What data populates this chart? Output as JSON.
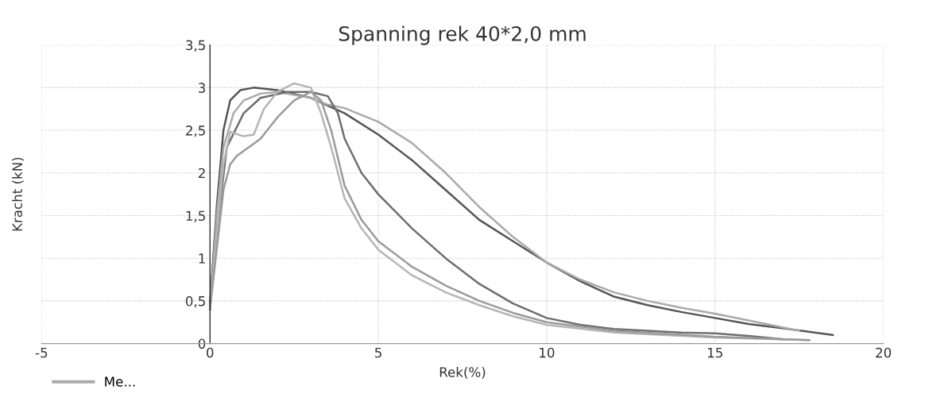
{
  "chart_data": {
    "type": "line",
    "title": "Spanning rek 40*2,0 mm",
    "xlabel": "Rek(%)",
    "ylabel": "Kracht (kN)",
    "xlim": [
      -5,
      20
    ],
    "xticks": [
      -5,
      0,
      5,
      10,
      15,
      20
    ],
    "ylim": [
      0,
      3.5
    ],
    "yticks": [
      0,
      {
        "value": 0.5,
        "label": "0,5"
      },
      1,
      {
        "value": 1.5,
        "label": "1,5"
      },
      2,
      {
        "value": 2.5,
        "label": "2,5"
      },
      3,
      {
        "value": 3.5,
        "label": "3,5"
      }
    ],
    "grid": true,
    "legend": "bottom left",
    "marker": "none",
    "line_style": "solid",
    "series": [
      {
        "color": "#555555",
        "x": [
          0,
          0.2,
          0.4,
          0.6,
          0.9,
          1.3,
          2,
          3,
          4,
          5,
          6,
          7,
          8,
          9,
          10,
          11,
          12,
          13,
          14,
          15,
          16,
          17,
          18.5
        ],
        "values": [
          0.45,
          1.6,
          2.5,
          2.85,
          2.97,
          3.0,
          2.97,
          2.88,
          2.7,
          2.45,
          2.15,
          1.8,
          1.45,
          1.2,
          0.95,
          0.73,
          0.55,
          0.45,
          0.37,
          0.3,
          0.23,
          0.18,
          0.1
        ]
      },
      {
        "name": "Me...",
        "color": "#aaaaaa",
        "x": [
          0,
          0.2,
          0.4,
          0.7,
          1,
          1.5,
          2,
          3,
          3.5,
          4,
          5,
          6,
          7,
          8,
          9,
          10,
          11,
          12,
          13,
          14,
          15,
          16,
          17.5
        ],
        "values": [
          0.4,
          1.5,
          2.3,
          2.7,
          2.85,
          2.93,
          2.95,
          2.88,
          2.8,
          2.76,
          2.6,
          2.35,
          2.0,
          1.6,
          1.25,
          0.95,
          0.75,
          0.6,
          0.5,
          0.42,
          0.35,
          0.27,
          0.15
        ]
      },
      {
        "color": "#6e6e6e",
        "x": [
          0,
          0.2,
          0.5,
          1,
          1.5,
          2.3,
          3,
          3.5,
          3.8,
          4,
          4.5,
          5,
          6,
          7,
          8,
          9,
          10,
          11,
          12,
          13,
          14,
          15,
          16,
          17
        ],
        "values": [
          0.45,
          1.3,
          2.3,
          2.7,
          2.88,
          2.95,
          2.95,
          2.9,
          2.7,
          2.4,
          2.0,
          1.75,
          1.35,
          1.0,
          0.7,
          0.47,
          0.3,
          0.22,
          0.17,
          0.15,
          0.13,
          0.12,
          0.09,
          0.05
        ]
      },
      {
        "color": "#b5b5b5",
        "x": [
          0,
          0.2,
          0.4,
          0.6,
          1,
          1.3,
          1.6,
          2,
          2.5,
          3,
          3.3,
          3.6,
          4,
          4.5,
          5,
          6,
          7,
          8,
          9,
          10,
          12,
          15,
          17.8
        ],
        "values": [
          0.4,
          1.3,
          2.1,
          2.48,
          2.43,
          2.45,
          2.75,
          2.95,
          3.05,
          3.0,
          2.7,
          2.3,
          1.7,
          1.35,
          1.1,
          0.8,
          0.6,
          0.45,
          0.32,
          0.22,
          0.13,
          0.07,
          0.04
        ]
      },
      {
        "color": "#9a9a9a",
        "x": [
          0,
          0.2,
          0.4,
          0.6,
          0.8,
          1.5,
          2,
          2.5,
          3,
          3.3,
          3.6,
          4,
          4.5,
          5,
          6,
          7,
          8,
          9,
          10,
          12,
          15,
          17.8
        ],
        "values": [
          0.4,
          1.1,
          1.8,
          2.1,
          2.2,
          2.4,
          2.65,
          2.85,
          2.95,
          2.85,
          2.5,
          1.85,
          1.45,
          1.2,
          0.9,
          0.68,
          0.5,
          0.36,
          0.25,
          0.15,
          0.08,
          0.04
        ]
      }
    ]
  }
}
